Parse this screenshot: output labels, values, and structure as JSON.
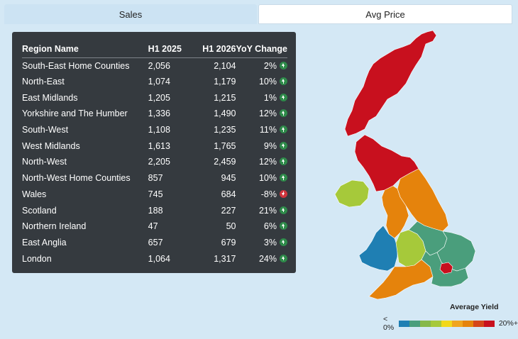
{
  "tabs": [
    {
      "label": "Sales",
      "active": true
    },
    {
      "label": "Avg Price",
      "active": false
    }
  ],
  "table": {
    "headers": [
      "Region Name",
      "H1 2025",
      "H1 2026",
      "YoY Change"
    ],
    "rows": [
      {
        "region": "South-East Home Counties",
        "h1_2025": "2,056",
        "h1_2026": "2,104",
        "yoy": "2%",
        "direction": "up"
      },
      {
        "region": "North-East",
        "h1_2025": "1,074",
        "h1_2026": "1,179",
        "yoy": "10%",
        "direction": "up"
      },
      {
        "region": "East Midlands",
        "h1_2025": "1,205",
        "h1_2026": "1,215",
        "yoy": "1%",
        "direction": "up"
      },
      {
        "region": "Yorkshire and The Humber",
        "h1_2025": "1,336",
        "h1_2026": "1,490",
        "yoy": "12%",
        "direction": "up"
      },
      {
        "region": "South-West",
        "h1_2025": "1,108",
        "h1_2026": "1,235",
        "yoy": "11%",
        "direction": "up"
      },
      {
        "region": "West Midlands",
        "h1_2025": "1,613",
        "h1_2026": "1,765",
        "yoy": "9%",
        "direction": "up"
      },
      {
        "region": "North-West",
        "h1_2025": "2,205",
        "h1_2026": "2,459",
        "yoy": "12%",
        "direction": "up"
      },
      {
        "region": "North-West Home Counties",
        "h1_2025": "857",
        "h1_2026": "945",
        "yoy": "10%",
        "direction": "up"
      },
      {
        "region": "Wales",
        "h1_2025": "745",
        "h1_2026": "684",
        "yoy": "-8%",
        "direction": "down"
      },
      {
        "region": "Scotland",
        "h1_2025": "188",
        "h1_2026": "227",
        "yoy": "21%",
        "direction": "up"
      },
      {
        "region": "Northern Ireland",
        "h1_2025": "47",
        "h1_2026": "50",
        "yoy": "6%",
        "direction": "up"
      },
      {
        "region": "East Anglia",
        "h1_2025": "657",
        "h1_2026": "679",
        "yoy": "3%",
        "direction": "up"
      },
      {
        "region": "London",
        "h1_2025": "1,064",
        "h1_2026": "1,317",
        "yoy": "24%",
        "direction": "up"
      }
    ]
  },
  "map": {
    "region_colors": {
      "scotland": "#c8101e",
      "northern_ireland": "#a6c93a",
      "north_east_yorkshire": "#e5830c",
      "north_west": "#e5830c",
      "wales": "#1f7fb3",
      "west_midlands": "#a6c93a",
      "east_midlands": "#4a9e7c",
      "east_anglia": "#4a9e7c",
      "south_west": "#e5830c",
      "south_east": "#4a9e7c",
      "london": "#c8101e"
    }
  },
  "legend": {
    "title": "Average Yield",
    "min_label": "< 0%",
    "max_label": "20%+",
    "colors": [
      "#1f7fb3",
      "#4a9e7c",
      "#86b84a",
      "#a6c93a",
      "#f2d81a",
      "#f0a51e",
      "#e5830c",
      "#d5461a",
      "#c8101e"
    ]
  }
}
